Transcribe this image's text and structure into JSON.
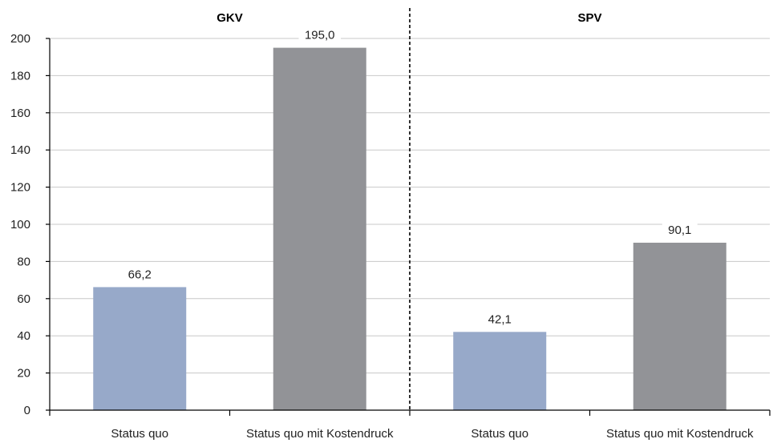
{
  "chart_data": {
    "type": "bar",
    "groups": [
      {
        "title": "GKV",
        "bars": [
          {
            "category": "Status quo",
            "value": 66.2,
            "label": "66,2",
            "color": "#97a9c9"
          },
          {
            "category": "Status quo mit Kostendruck",
            "value": 195.0,
            "label": "195,0",
            "color": "#929397"
          }
        ]
      },
      {
        "title": "SPV",
        "bars": [
          {
            "category": "Status quo",
            "value": 42.1,
            "label": "42,1",
            "color": "#97a9c9"
          },
          {
            "category": "Status quo mit Kostendruck",
            "value": 90.1,
            "label": "90,1",
            "color": "#929397"
          }
        ]
      }
    ],
    "y_ticks": [
      "0",
      "20",
      "40",
      "60",
      "80",
      "100",
      "120",
      "140",
      "160",
      "180",
      "200"
    ],
    "ylim": [
      0,
      200
    ],
    "grid": true,
    "group_separator": "dashed"
  }
}
